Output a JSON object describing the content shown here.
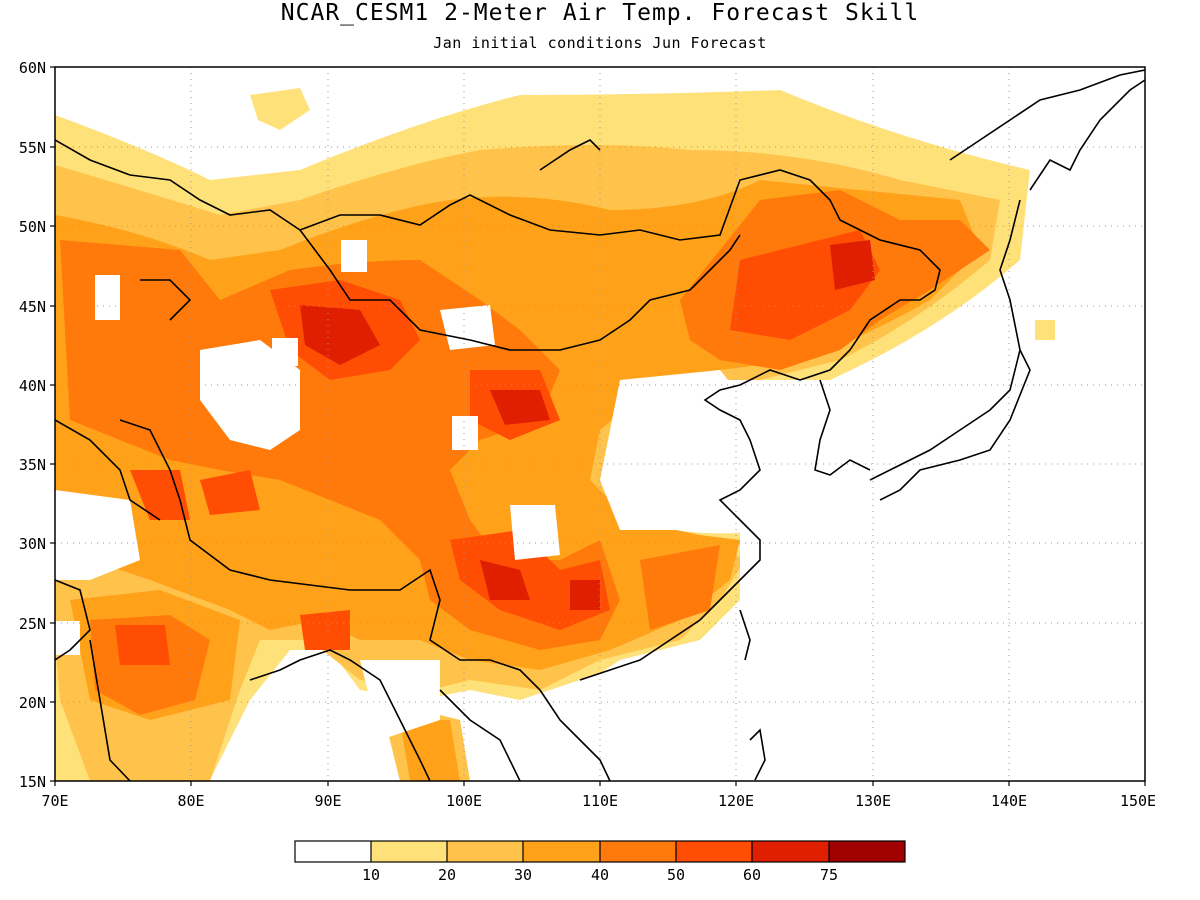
{
  "title": "NCAR_CESM1 2-Meter Air Temp. Forecast Skill",
  "subtitle": "Jan initial conditions  Jun Forecast",
  "lat_labels": [
    "60N",
    "55N",
    "50N",
    "45N",
    "40N",
    "35N",
    "30N",
    "25N",
    "20N",
    "15N"
  ],
  "lon_labels": [
    "70E",
    "80E",
    "90E",
    "100E",
    "110E",
    "120E",
    "130E",
    "140E",
    "150E"
  ],
  "colorbar": {
    "labels": [
      "10",
      "20",
      "30",
      "40",
      "50",
      "60",
      "75"
    ],
    "colors": [
      "#ffffff",
      "#ffe17a",
      "#ffc24a",
      "#ffa21a",
      "#ff7a0a",
      "#ff4d04",
      "#e01e00",
      "#a00000"
    ]
  },
  "colors": {
    "land_outline": "#000000",
    "grid": "#9a9a9a"
  }
}
